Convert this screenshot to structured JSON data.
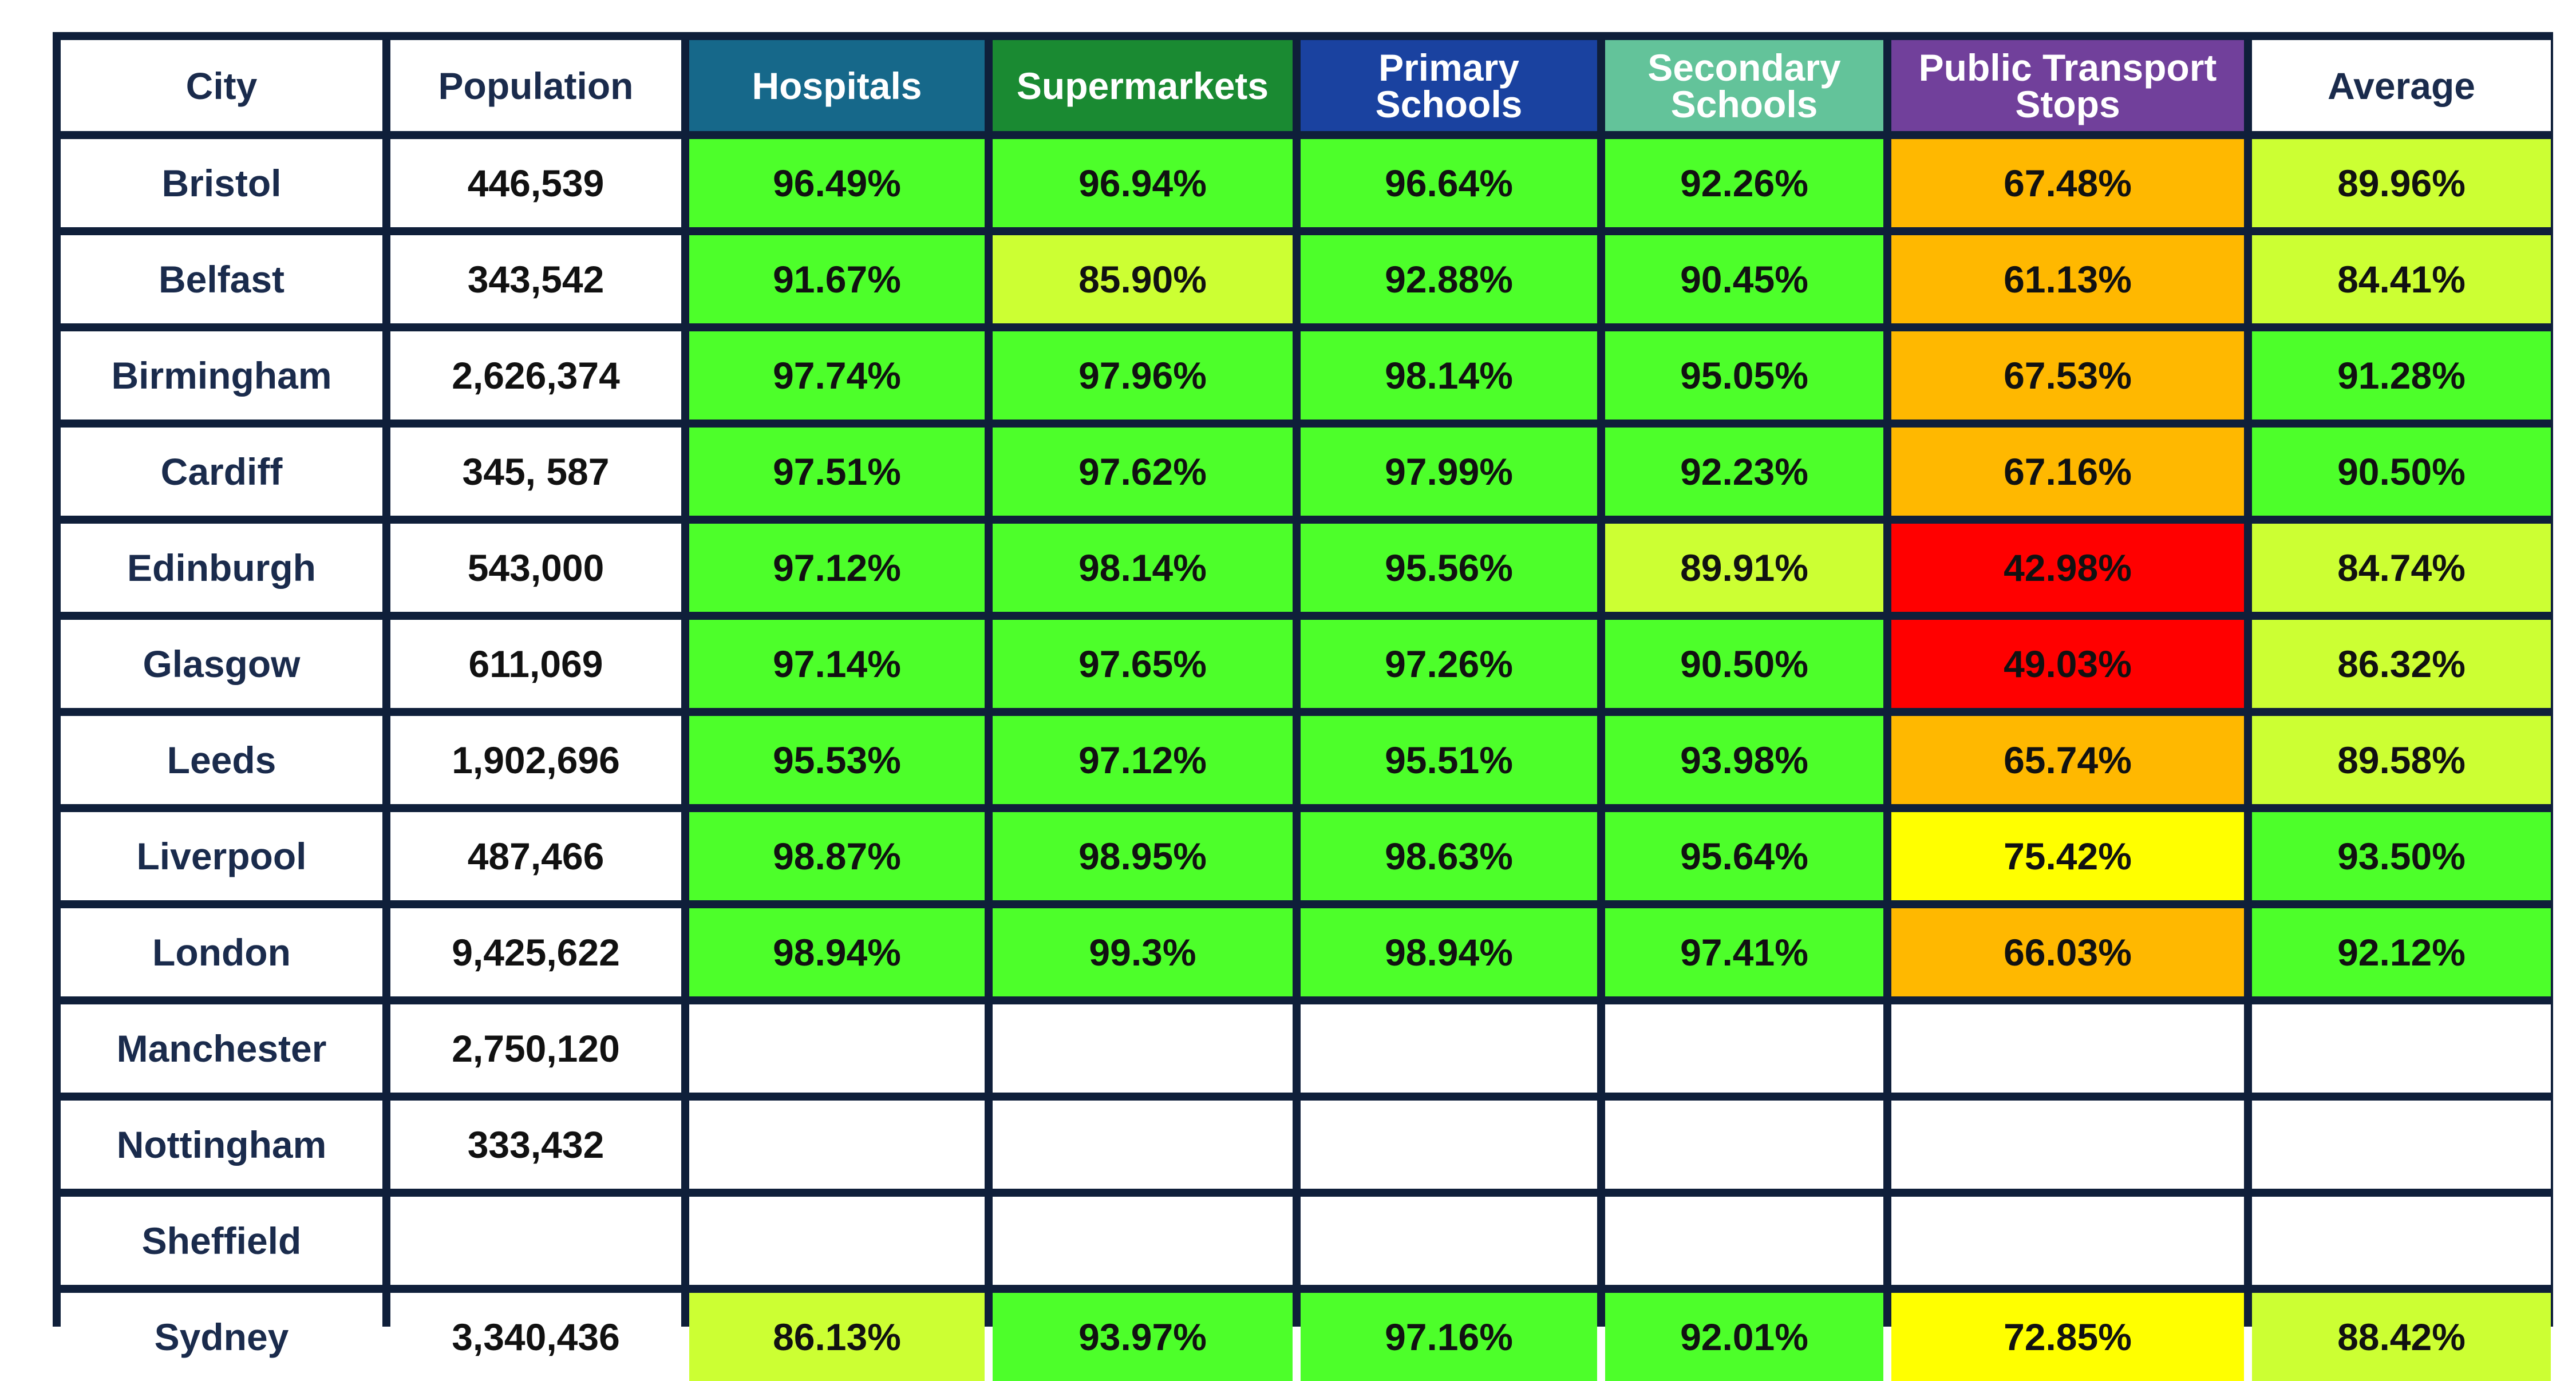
{
  "chart_data": {
    "type": "table",
    "columns": [
      "City",
      "Population",
      "Hospitals",
      "Supermarkets",
      "Primary Schools",
      "Secondary Schools",
      "Public Transport Stops",
      "Average"
    ],
    "header_colors": [
      "#ffffff",
      "#ffffff",
      "#16688a",
      "#1a8a32",
      "#1a42a0",
      "#63c39a",
      "#71409b",
      "#ffffff"
    ],
    "header_text_colors": [
      "#1a2b4c",
      "#1a2b4c",
      "#ffffff",
      "#ffffff",
      "#ffffff",
      "#ffffff",
      "#ffffff",
      "#1a2b4c"
    ],
    "status_colors": {
      "green": "#4dff2a",
      "lime": "#ccff33",
      "yellow": "#ffff00",
      "orange": "#ffb800",
      "red": "#ff0000",
      "empty": "#ffffff"
    },
    "rows": [
      {
        "city": "Bristol",
        "population": "446,539",
        "values": [
          "96.49%",
          "96.94%",
          "96.64%",
          "92.26%",
          "67.48%",
          "89.96%"
        ],
        "colors": [
          "green",
          "green",
          "green",
          "green",
          "orange",
          "lime"
        ]
      },
      {
        "city": "Belfast",
        "population": "343,542",
        "values": [
          "91.67%",
          "85.90%",
          "92.88%",
          "90.45%",
          "61.13%",
          "84.41%"
        ],
        "colors": [
          "green",
          "lime",
          "green",
          "green",
          "orange",
          "lime"
        ]
      },
      {
        "city": "Birmingham",
        "population": "2,626,374",
        "values": [
          "97.74%",
          "97.96%",
          "98.14%",
          "95.05%",
          "67.53%",
          "91.28%"
        ],
        "colors": [
          "green",
          "green",
          "green",
          "green",
          "orange",
          "green"
        ]
      },
      {
        "city": "Cardiff",
        "population": "345, 587",
        "values": [
          "97.51%",
          "97.62%",
          "97.99%",
          "92.23%",
          "67.16%",
          "90.50%"
        ],
        "colors": [
          "green",
          "green",
          "green",
          "green",
          "orange",
          "green"
        ]
      },
      {
        "city": "Edinburgh",
        "population": "543,000",
        "values": [
          "97.12%",
          "98.14%",
          "95.56%",
          "89.91%",
          "42.98%",
          "84.74%"
        ],
        "colors": [
          "green",
          "green",
          "green",
          "lime",
          "red",
          "lime"
        ]
      },
      {
        "city": "Glasgow",
        "population": "611,069",
        "values": [
          "97.14%",
          "97.65%",
          "97.26%",
          "90.50%",
          "49.03%",
          "86.32%"
        ],
        "colors": [
          "green",
          "green",
          "green",
          "green",
          "red",
          "lime"
        ]
      },
      {
        "city": "Leeds",
        "population": "1,902,696",
        "values": [
          "95.53%",
          "97.12%",
          "95.51%",
          "93.98%",
          "65.74%",
          "89.58%"
        ],
        "colors": [
          "green",
          "green",
          "green",
          "green",
          "orange",
          "lime"
        ]
      },
      {
        "city": "Liverpool",
        "population": "487,466",
        "values": [
          "98.87%",
          "98.95%",
          "98.63%",
          "95.64%",
          "75.42%",
          "93.50%"
        ],
        "colors": [
          "green",
          "green",
          "green",
          "green",
          "yellow",
          "green"
        ]
      },
      {
        "city": "London",
        "population": "9,425,622",
        "values": [
          "98.94%",
          "99.3%",
          "98.94%",
          "97.41%",
          "66.03%",
          "92.12%"
        ],
        "colors": [
          "green",
          "green",
          "green",
          "green",
          "orange",
          "green"
        ]
      },
      {
        "city": "Manchester",
        "population": "2,750,120",
        "values": [
          "",
          "",
          "",
          "",
          "",
          ""
        ],
        "colors": [
          "empty",
          "empty",
          "empty",
          "empty",
          "empty",
          "empty"
        ]
      },
      {
        "city": "Nottingham",
        "population": "333,432",
        "values": [
          "",
          "",
          "",
          "",
          "",
          ""
        ],
        "colors": [
          "empty",
          "empty",
          "empty",
          "empty",
          "empty",
          "empty"
        ]
      },
      {
        "city": "Sheffield",
        "population": "",
        "values": [
          "",
          "",
          "",
          "",
          "",
          ""
        ],
        "colors": [
          "empty",
          "empty",
          "empty",
          "empty",
          "empty",
          "empty"
        ]
      },
      {
        "city": "Sydney",
        "population": "3,340,436",
        "values": [
          "86.13%",
          "93.97%",
          "97.16%",
          "92.01%",
          "72.85%",
          "88.42%"
        ],
        "colors": [
          "lime",
          "green",
          "green",
          "green",
          "yellow",
          "lime"
        ]
      }
    ]
  }
}
